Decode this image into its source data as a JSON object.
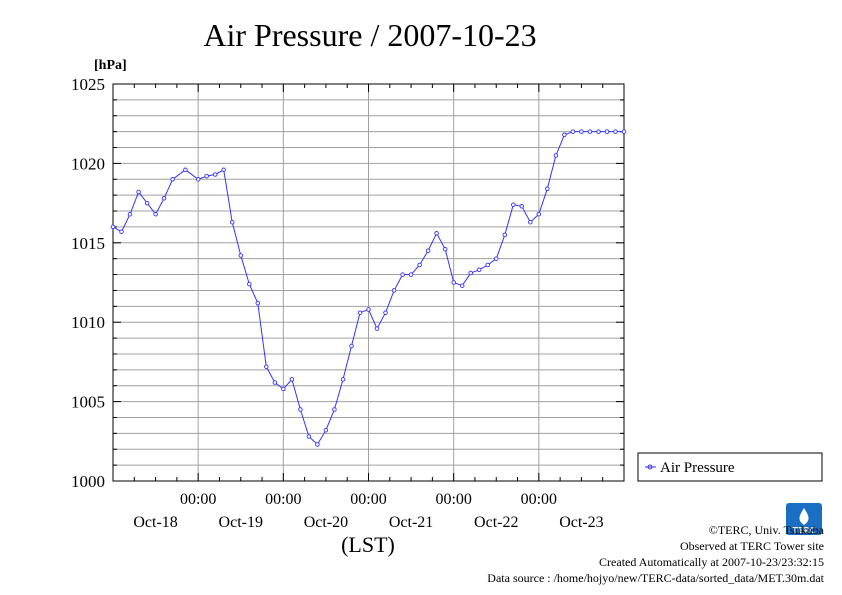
{
  "chart_data": {
    "type": "line",
    "title": "Air Pressure / 2007-10-23",
    "ylabel": "[hPa]",
    "xlabel": "(LST)",
    "ylim": [
      1000,
      1025
    ],
    "yticks": [
      1000,
      1005,
      1010,
      1015,
      1020,
      1025
    ],
    "grid": true,
    "legend_position": "right",
    "x_tick_labels": [
      "00:00",
      "00:00",
      "00:00",
      "00:00",
      "00:00"
    ],
    "x_day_labels": [
      "Oct-18",
      "Oct-19",
      "Oct-20",
      "Oct-21",
      "Oct-22",
      "Oct-23"
    ],
    "x_range_days": [
      0,
      6
    ],
    "series": [
      {
        "name": "Air Pressure",
        "color": "#3333ff",
        "x": [
          0.0,
          0.1,
          0.2,
          0.3,
          0.4,
          0.5,
          0.6,
          0.7,
          0.85,
          1.0,
          1.1,
          1.2,
          1.3,
          1.4,
          1.5,
          1.6,
          1.7,
          1.8,
          1.9,
          2.0,
          2.1,
          2.2,
          2.3,
          2.4,
          2.5,
          2.6,
          2.7,
          2.8,
          2.9,
          3.0,
          3.1,
          3.2,
          3.3,
          3.4,
          3.5,
          3.6,
          3.7,
          3.8,
          3.9,
          4.0,
          4.1,
          4.2,
          4.3,
          4.4,
          4.5,
          4.6,
          4.7,
          4.8,
          4.9,
          5.0,
          5.1,
          5.2,
          5.3,
          5.4,
          5.5,
          5.6,
          5.7,
          5.8,
          5.9,
          6.0
        ],
        "values": [
          1016.0,
          1015.7,
          1016.8,
          1018.2,
          1017.5,
          1016.8,
          1017.8,
          1019.0,
          1019.6,
          1019.0,
          1019.2,
          1019.3,
          1019.6,
          1016.3,
          1014.2,
          1012.4,
          1011.2,
          1007.2,
          1006.2,
          1005.8,
          1006.4,
          1004.5,
          1002.8,
          1002.3,
          1003.2,
          1004.5,
          1006.4,
          1008.5,
          1010.6,
          1010.8,
          1009.6,
          1010.6,
          1012.0,
          1013.0,
          1013.0,
          1013.6,
          1014.5,
          1015.6,
          1014.6,
          1012.5,
          1012.3,
          1013.1,
          1013.3,
          1013.6,
          1014.0,
          1015.5,
          1017.4,
          1017.3,
          1016.3,
          1016.8,
          1018.4,
          1020.5,
          1021.8,
          1022.0,
          1022.0,
          1022.0,
          1022.0,
          1022.0,
          1022.0,
          1022.0
        ]
      }
    ]
  },
  "footer": {
    "copyright": "©TERC, Univ. Tsukuba",
    "site": "Observed at TERC Tower site",
    "created": "Created Automatically at 2007-10-23/23:32:15",
    "source": "Data source : /home/hojyo/new/TERC-data/sorted_data/MET.30m.dat"
  },
  "logo": {
    "text": "TERC",
    "color": "#1a6fc4"
  }
}
